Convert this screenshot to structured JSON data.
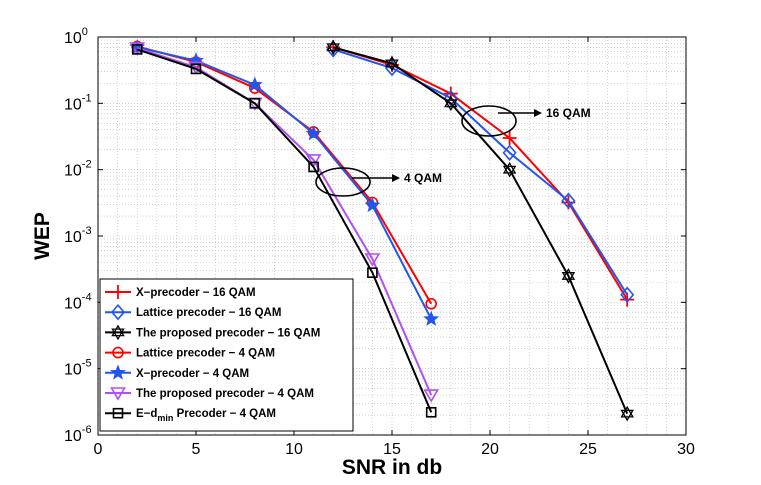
{
  "chart_data": {
    "type": "line",
    "title": "",
    "xlabel": "SNR in db",
    "ylabel": "WEP",
    "xlim": [
      0,
      30
    ],
    "ylim": [
      1e-06,
      1
    ],
    "yscale": "log",
    "xticks": [
      "0",
      "5",
      "10",
      "15",
      "20",
      "25",
      "30"
    ],
    "yticks": [
      {
        "base": "10",
        "exp": "0"
      },
      {
        "base": "10",
        "exp": "-1"
      },
      {
        "base": "10",
        "exp": "-2"
      },
      {
        "base": "10",
        "exp": "-3"
      },
      {
        "base": "10",
        "exp": "-4"
      },
      {
        "base": "10",
        "exp": "-5"
      },
      {
        "base": "10",
        "exp": "-6"
      }
    ],
    "grid": true,
    "legend_position": "bottom-left",
    "series": [
      {
        "name": "X-precoder - 16 QAM",
        "legend": "X−precoder − 16 QAM",
        "color": "#ff0000",
        "marker": "plus",
        "x": [
          12,
          15,
          18,
          21,
          24,
          27
        ],
        "y": [
          0.7,
          0.38,
          0.14,
          0.03,
          0.0032,
          0.00011
        ]
      },
      {
        "name": "Lattice precoder - 16 QAM",
        "legend": " Lattice precoder − 16 QAM",
        "color": "#2255ee",
        "marker": "diamond",
        "x": [
          12,
          15,
          18,
          21,
          24,
          27
        ],
        "y": [
          0.65,
          0.34,
          0.12,
          0.018,
          0.0034,
          0.00013
        ]
      },
      {
        "name": "The proposed precoder - 16 QAM",
        "legend": "The proposed precoder − 16 QAM",
        "color": "#000000",
        "marker": "hexagram",
        "x": [
          12,
          15,
          18,
          21,
          24,
          27
        ],
        "y": [
          0.7,
          0.4,
          0.1,
          0.01,
          0.00025,
          2.1e-06
        ]
      },
      {
        "name": "Lattice precoder - 4 QAM",
        "legend": "Lattice precoder − 4 QAM",
        "color": "#ff0000",
        "marker": "circle",
        "x": [
          2,
          5,
          8,
          11,
          14,
          17
        ],
        "y": [
          0.72,
          0.42,
          0.17,
          0.037,
          0.0032,
          9.5e-05
        ]
      },
      {
        "name": "X-precoder - 4 QAM",
        "legend": "X−precoder − 4 QAM",
        "color": "#2255ee",
        "marker": "star",
        "x": [
          2,
          5,
          8,
          11,
          14,
          17
        ],
        "y": [
          0.7,
          0.44,
          0.19,
          0.035,
          0.0029,
          5.6e-05
        ]
      },
      {
        "name": "The proposed precoder - 4 QAM",
        "legend": "The proposed precoder − 4 QAM",
        "color": "#b050f0",
        "marker": "triangle-down",
        "x": [
          2,
          5,
          8,
          11,
          14,
          17
        ],
        "y": [
          0.68,
          0.35,
          0.1,
          0.014,
          0.00045,
          4e-06
        ]
      },
      {
        "name": "E-d_min Precoder - 4 QAM",
        "legend_main": "E−d",
        "legend_sub": "min",
        "legend_rest": " Precoder − 4 QAM",
        "color": "#000000",
        "marker": "square",
        "x": [
          2,
          5,
          8,
          11,
          14,
          17
        ],
        "y": [
          0.65,
          0.33,
          0.1,
          0.011,
          0.00028,
          2.2e-06
        ]
      }
    ],
    "annotations": [
      {
        "text": "16 QAM",
        "x": 19.5,
        "y": 0.05
      },
      {
        "text": "4 QAM",
        "x": 12.4,
        "y": 0.0068
      }
    ]
  }
}
